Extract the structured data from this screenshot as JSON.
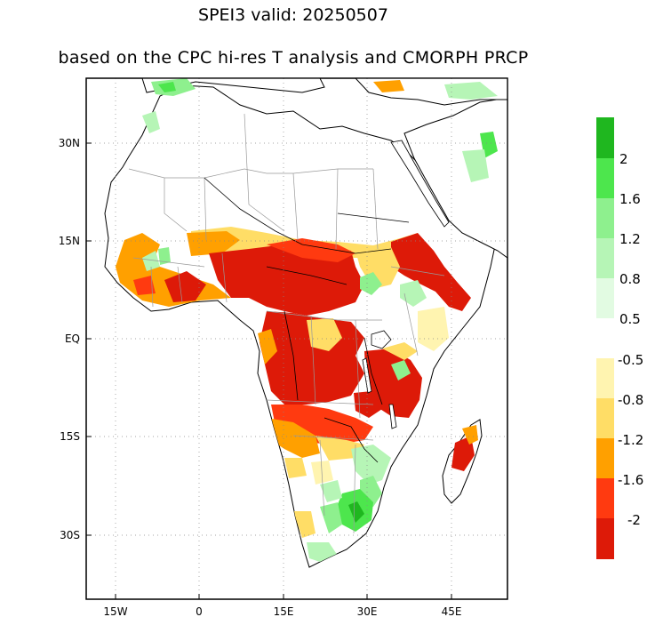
{
  "title": {
    "line1": "SPEI3   valid: 20250507",
    "line2": "based on the CPC hi-res T analysis and CMORPH PRCP"
  },
  "axes": {
    "lat_labels": [
      "30N",
      "15N",
      "EQ",
      "15S",
      "30S"
    ],
    "lon_labels": [
      "15W",
      "0",
      "15E",
      "30E",
      "45E"
    ]
  },
  "colorbar_wet": {
    "labels": [
      "2",
      "1.6",
      "1.2",
      "0.8",
      "0.5"
    ],
    "colors": [
      "#1fb71f",
      "#4de64d",
      "#8ef08e",
      "#b6f5b6",
      "#e2fbe2"
    ]
  },
  "colorbar_dry": {
    "labels": [
      "-0.5",
      "-0.8",
      "-1.2",
      "-1.6",
      "-2"
    ],
    "colors": [
      "#fff4b0",
      "#ffdd66",
      "#ffa000",
      "#ff3a10",
      "#dd1a08"
    ]
  },
  "palette": {
    "severe_dry": "#dd1a08",
    "extreme_dry": "#ff3a10",
    "moderate_dry": "#ffa000",
    "mild_dry": "#ffdd66",
    "near_dry": "#fff4b0",
    "mild_wet": "#b6f5b6",
    "moderate_wet": "#8ef08e",
    "strong_wet": "#4de64d",
    "very_wet": "#1fb71f"
  }
}
